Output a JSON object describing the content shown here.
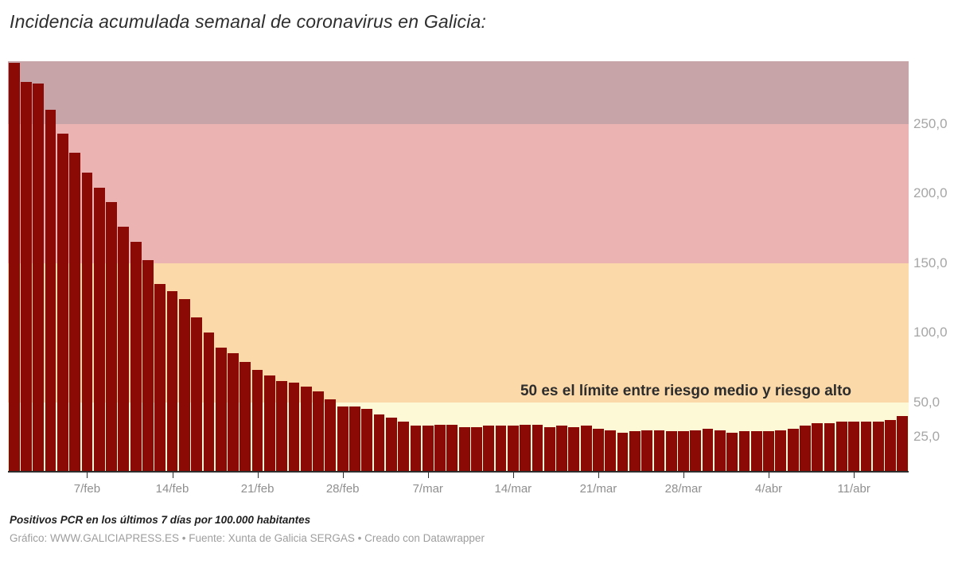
{
  "title": "Incidencia acumulada semanal de coronavirus en Galicia:",
  "annotation": "50 es el límite entre riesgo medio y riesgo alto",
  "footer": {
    "note": "Positivos PCR en los últimos 7 días por 100.000 habitantes",
    "byline": "Gráfico: WWW.GALICIAPRESS.ES • Fuente: Xunta de Galicia SERGAS • Creado con Datawrapper"
  },
  "colors": {
    "bar": "#8b0a05",
    "axis": "#2e2e2e",
    "band_over_250": "#c7a4a7",
    "band_150_250": "#ecb3b3",
    "band_50_150": "#fbd9a9",
    "band_0_50": "#fdf9d6"
  },
  "chart_data": {
    "type": "bar",
    "title": "Incidencia acumulada semanal de coronavirus en Galicia:",
    "xlabel": "",
    "ylabel": "Positivos PCR en los últimos 7 días por 100.000 habitantes",
    "ylim": [
      0,
      295
    ],
    "grid": false,
    "legend": false,
    "bar_color": "#8b0a05",
    "x": [
      "1/feb",
      "2/feb",
      "3/feb",
      "4/feb",
      "5/feb",
      "6/feb",
      "7/feb",
      "8/feb",
      "9/feb",
      "10/feb",
      "11/feb",
      "12/feb",
      "13/feb",
      "14/feb",
      "15/feb",
      "16/feb",
      "17/feb",
      "18/feb",
      "19/feb",
      "20/feb",
      "21/feb",
      "22/feb",
      "23/feb",
      "24/feb",
      "25/feb",
      "26/feb",
      "27/feb",
      "28/feb",
      "1/mar",
      "2/mar",
      "3/mar",
      "4/mar",
      "5/mar",
      "6/mar",
      "7/mar",
      "8/mar",
      "9/mar",
      "10/mar",
      "11/mar",
      "12/mar",
      "13/mar",
      "14/mar",
      "15/mar",
      "16/mar",
      "17/mar",
      "18/mar",
      "19/mar",
      "20/mar",
      "21/mar",
      "22/mar",
      "23/mar",
      "24/mar",
      "25/mar",
      "26/mar",
      "27/mar",
      "28/mar",
      "29/mar",
      "30/mar",
      "31/mar",
      "1/abr",
      "2/abr",
      "3/abr",
      "4/abr",
      "5/abr",
      "6/abr",
      "7/abr",
      "8/abr",
      "9/abr",
      "10/abr",
      "11/abr",
      "12/abr",
      "13/abr",
      "14/abr",
      "15/abr"
    ],
    "values": [
      294,
      280,
      279,
      260,
      243,
      229,
      215,
      204,
      194,
      176,
      165,
      152,
      135,
      130,
      124,
      111,
      100,
      89,
      85,
      79,
      73,
      69,
      65,
      64,
      61,
      58,
      52,
      47,
      47,
      45,
      41,
      39,
      36,
      33,
      33,
      34,
      34,
      32,
      32,
      33,
      33,
      33,
      34,
      34,
      32,
      33,
      32,
      33,
      31,
      30,
      28,
      29,
      30,
      30,
      29,
      29,
      30,
      31,
      30,
      28,
      29,
      29,
      29,
      30,
      31,
      33,
      35,
      35,
      36,
      36,
      36,
      36,
      37,
      40
    ],
    "x_ticks": [
      {
        "index": 6,
        "label": "7/feb"
      },
      {
        "index": 13,
        "label": "14/feb"
      },
      {
        "index": 20,
        "label": "21/feb"
      },
      {
        "index": 27,
        "label": "28/feb"
      },
      {
        "index": 34,
        "label": "7/mar"
      },
      {
        "index": 41,
        "label": "14/mar"
      },
      {
        "index": 48,
        "label": "21/mar"
      },
      {
        "index": 55,
        "label": "28/mar"
      },
      {
        "index": 62,
        "label": "4/abr"
      },
      {
        "index": 69,
        "label": "11/abr"
      }
    ],
    "y_ticks": [
      {
        "value": 250,
        "label": "250,0"
      },
      {
        "value": 200,
        "label": "200,0"
      },
      {
        "value": 150,
        "label": "150,0"
      },
      {
        "value": 100,
        "label": "100,0"
      },
      {
        "value": 50,
        "label": "50,0"
      },
      {
        "value": 25,
        "label": "25,0"
      }
    ],
    "bands": [
      {
        "from": 250,
        "to": 295,
        "color": "#c7a4a7"
      },
      {
        "from": 150,
        "to": 250,
        "color": "#ecb3b3"
      },
      {
        "from": 50,
        "to": 150,
        "color": "#fbd9a9"
      },
      {
        "from": 0,
        "to": 50,
        "color": "#fdf9d6"
      }
    ],
    "annotations": [
      {
        "text": "50 es el límite entre riesgo medio y riesgo alto",
        "y": 50,
        "position": "above-line-right"
      }
    ]
  }
}
